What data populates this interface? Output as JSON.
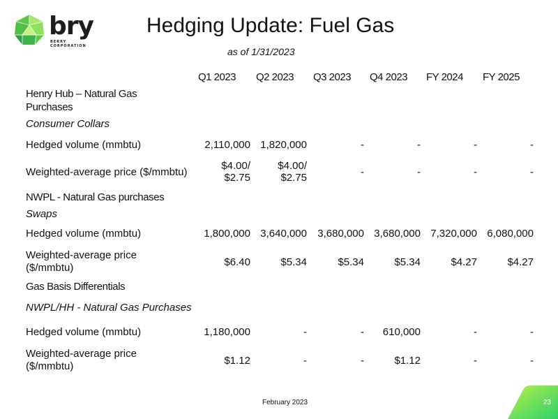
{
  "logo": {
    "wordmark": "bry",
    "corp_line1": "BERRY",
    "corp_line2": "CORPORATION",
    "colors": [
      "#7ed957",
      "#3bb54a",
      "#1d1d1d"
    ]
  },
  "title": "Hedging Update: Fuel Gas",
  "subtitle": "as of  1/31/2023",
  "columns": [
    "Q1 2023",
    "Q2 2023",
    "Q3 2023",
    "Q4 2023",
    "FY 2024",
    "FY 2025"
  ],
  "sections": [
    {
      "heading_line1": "Henry Hub – Natural Gas",
      "heading_line2": "Purchases",
      "subheading": "Consumer Collars",
      "rows": [
        {
          "label": "Hedged volume (mmbtu)",
          "values": [
            "2,110,000",
            "1,820,000",
            "-",
            "-",
            "-",
            "-"
          ]
        },
        {
          "label": "Weighted-average price ($/mmbtu)",
          "values": [
            [
              "$4.00/",
              "$2.75"
            ],
            [
              "$4.00/",
              "$2.75"
            ],
            "-",
            "-",
            "-",
            "-"
          ]
        }
      ]
    },
    {
      "heading_line1": "NWPL - Natural Gas purchases",
      "subheading": "Swaps",
      "rows": [
        {
          "label": "Hedged volume (mmbtu)",
          "values": [
            "1,800,000",
            "3,640,000",
            "3,680,000",
            "3,680,000",
            "7,320,000",
            "6,080,000"
          ]
        },
        {
          "label_line1": "Weighted-average price",
          "label_line2": "($/mmbtu)",
          "values": [
            "$6.40",
            "$5.34",
            "$5.34",
            "$5.34",
            "$4.27",
            "$4.27"
          ]
        }
      ]
    },
    {
      "heading_line1": "Gas Basis Differentials",
      "subheading": "NWPL/HH - Natural Gas Purchases",
      "rows": [
        {
          "label": "Hedged volume (mmbtu)",
          "values": [
            "1,180,000",
            "-",
            "-",
            "610,000",
            "-",
            "-"
          ]
        },
        {
          "label_line1": "Weighted-average price",
          "label_line2": "($/mmbtu)",
          "values": [
            "$1.12",
            "-",
            "-",
            "$1.12",
            "-",
            "-"
          ]
        }
      ]
    }
  ],
  "footer": "February 2023",
  "page_number": "23",
  "accent_colors": {
    "corner_start": "#b6f24a",
    "corner_end": "#2fd06a"
  }
}
